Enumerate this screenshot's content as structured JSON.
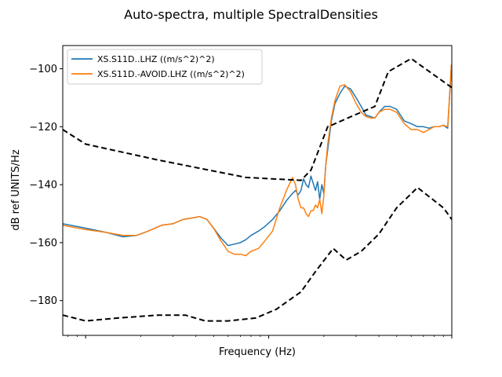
{
  "chart_data": {
    "type": "line",
    "title": "Auto-spectra, multiple SpectralDensities",
    "xlabel": "Frequency (Hz)",
    "ylabel": "dB ref UNITS/Hz",
    "xscale": "log",
    "xlim": [
      0.00075,
      0.1
    ],
    "ylim": [
      -192,
      -92
    ],
    "yticks": [
      -100,
      -120,
      -140,
      -160,
      -180
    ],
    "grid": false,
    "legend_position": "top-left",
    "series": [
      {
        "name": "XS.S11D..LHZ ((m/s^2)^2)",
        "color": "#1f77b4",
        "x": [
          0.00075,
          0.001,
          0.0013,
          0.0016,
          0.0019,
          0.0022,
          0.0026,
          0.003,
          0.0034,
          0.0038,
          0.0042,
          0.0046,
          0.005,
          0.0055,
          0.006,
          0.0065,
          0.007,
          0.0075,
          0.008,
          0.0088,
          0.0095,
          0.0105,
          0.0115,
          0.0125,
          0.0135,
          0.014,
          0.0145,
          0.015,
          0.0155,
          0.016,
          0.0165,
          0.017,
          0.0175,
          0.018,
          0.0185,
          0.019,
          0.0195,
          0.02,
          0.0205,
          0.021,
          0.022,
          0.023,
          0.0245,
          0.026,
          0.028,
          0.03,
          0.032,
          0.034,
          0.036,
          0.038,
          0.04,
          0.043,
          0.046,
          0.05,
          0.055,
          0.06,
          0.065,
          0.07,
          0.075,
          0.08,
          0.085,
          0.09,
          0.095,
          0.0995
        ],
        "y": [
          -153.5,
          -155,
          -156.5,
          -158,
          -157.5,
          -156,
          -154,
          -153.5,
          -152,
          -151.5,
          -151,
          -152,
          -155,
          -158.5,
          -161,
          -160.5,
          -160,
          -159,
          -157.5,
          -156,
          -154.5,
          -152,
          -149,
          -145.5,
          -143,
          -142,
          -143.5,
          -142,
          -138,
          -140,
          -141,
          -137,
          -139.5,
          -142,
          -139,
          -145,
          -140,
          -143,
          -133,
          -128,
          -118,
          -112,
          -108.5,
          -106,
          -107,
          -110,
          -113,
          -116,
          -116.5,
          -117,
          -115,
          -113,
          -113,
          -114,
          -118,
          -119,
          -120,
          -120,
          -120.5,
          -120,
          -120,
          -119.5,
          -120.5,
          -99
        ]
      },
      {
        "name": "XS.S11D.-AVOID.LHZ ((m/s^2)^2)",
        "color": "#ff7f0e",
        "x": [
          0.00075,
          0.001,
          0.0013,
          0.0016,
          0.0019,
          0.0022,
          0.0026,
          0.003,
          0.0034,
          0.0038,
          0.0042,
          0.0046,
          0.005,
          0.0055,
          0.006,
          0.0065,
          0.007,
          0.0075,
          0.008,
          0.0088,
          0.0095,
          0.0105,
          0.0115,
          0.0125,
          0.0135,
          0.014,
          0.0145,
          0.015,
          0.0155,
          0.016,
          0.0165,
          0.017,
          0.0175,
          0.018,
          0.0185,
          0.019,
          0.0195,
          0.02,
          0.0205,
          0.021,
          0.022,
          0.023,
          0.0245,
          0.026,
          0.028,
          0.03,
          0.032,
          0.034,
          0.036,
          0.038,
          0.04,
          0.043,
          0.046,
          0.05,
          0.055,
          0.06,
          0.065,
          0.07,
          0.075,
          0.08,
          0.085,
          0.09,
          0.095,
          0.0995
        ],
        "y": [
          -154,
          -155.5,
          -156.5,
          -157.5,
          -157.5,
          -156,
          -154,
          -153.5,
          -152,
          -151.5,
          -151,
          -152,
          -155,
          -159.5,
          -163,
          -164,
          -164,
          -164.5,
          -163,
          -162,
          -159.5,
          -156,
          -148,
          -142,
          -137.5,
          -140,
          -145,
          -148,
          -148,
          -150,
          -151,
          -149,
          -149,
          -147,
          -148,
          -145,
          -150,
          -144,
          -133,
          -126,
          -117,
          -111,
          -106,
          -105.5,
          -108,
          -112,
          -115,
          -116.5,
          -117,
          -117,
          -115,
          -114,
          -114,
          -115,
          -119,
          -121,
          -121,
          -122,
          -121,
          -120,
          -120,
          -119.5,
          -120,
          -98.5
        ]
      },
      {
        "name": "",
        "color": "#000000",
        "style": "dashed",
        "x": [
          0.00075,
          0.001,
          0.0025,
          0.0075,
          0.015,
          0.017,
          0.021,
          0.022,
          0.027,
          0.032,
          0.038,
          0.045,
          0.06,
          0.1
        ],
        "y": [
          -121,
          -126,
          -131.5,
          -137.5,
          -138.5,
          -135,
          -120,
          -119.5,
          -117,
          -115,
          -113,
          -101,
          -96.5,
          -106.5
        ]
      },
      {
        "name": "",
        "color": "#000000",
        "style": "dashed",
        "x": [
          0.00075,
          0.001,
          0.0015,
          0.0025,
          0.0035,
          0.0045,
          0.006,
          0.0085,
          0.011,
          0.015,
          0.018,
          0.0225,
          0.0265,
          0.032,
          0.04,
          0.05,
          0.065,
          0.09,
          0.1
        ],
        "y": [
          -185,
          -187,
          -186,
          -185,
          -185,
          -187,
          -187,
          -186,
          -183,
          -177,
          -170,
          -162,
          -166,
          -163,
          -157,
          -148,
          -141,
          -148,
          -152
        ]
      }
    ]
  }
}
